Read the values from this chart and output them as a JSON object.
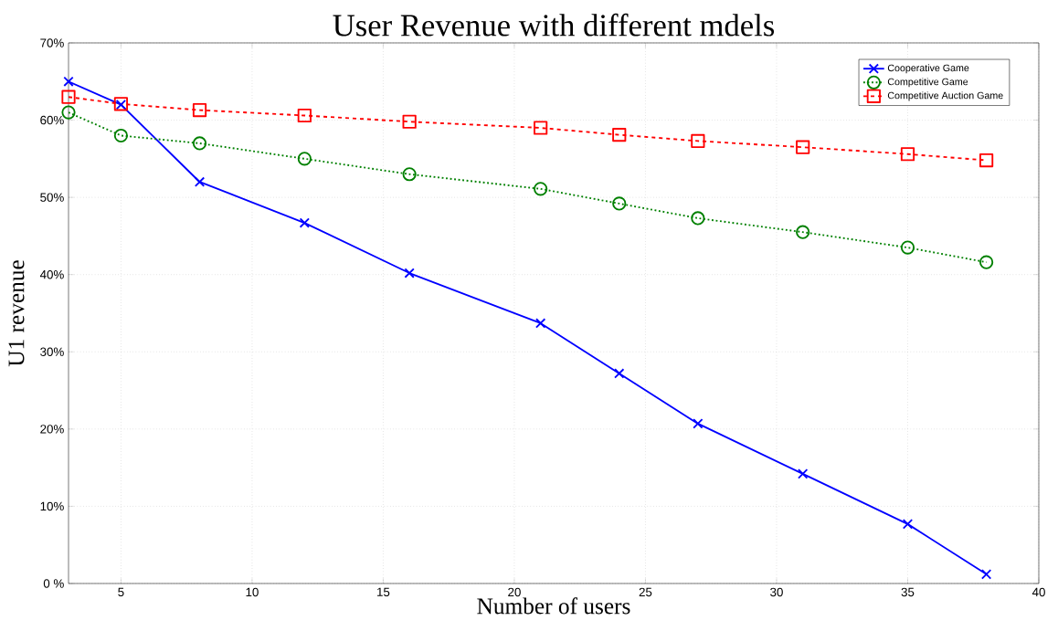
{
  "chart_data": {
    "type": "line",
    "title": "User Revenue with different mdels",
    "xlabel": "Number of users",
    "ylabel": "U1 revenue",
    "x": [
      3,
      5,
      8,
      12,
      16,
      21,
      24,
      27,
      31,
      35,
      38
    ],
    "series": [
      {
        "name": "Cooperative Game",
        "color": "#0000ff",
        "marker": "cross",
        "line_style": "solid",
        "values": [
          65,
          62,
          52,
          46.7,
          40.2,
          33.7,
          27.2,
          20.7,
          14.2,
          7.7,
          1.2
        ]
      },
      {
        "name": "Competitive Game",
        "color": "#008000",
        "marker": "circle",
        "line_style": "dotted",
        "values": [
          61,
          58,
          57,
          55,
          53,
          51.1,
          49.2,
          47.3,
          45.5,
          43.5,
          41.6
        ]
      },
      {
        "name": "Competitive Auction Game",
        "color": "#ff0000",
        "marker": "square",
        "line_style": "dashed",
        "values": [
          63,
          62.1,
          61.3,
          60.6,
          59.8,
          59,
          58.1,
          57.3,
          56.5,
          55.6,
          54.8
        ]
      }
    ],
    "xlim": [
      3,
      40
    ],
    "xticks": [
      5,
      10,
      15,
      20,
      25,
      30,
      35,
      40
    ],
    "ylim": [
      0,
      70
    ],
    "yticks": [
      {
        "value": 0,
        "label": "0 %"
      },
      {
        "value": 10,
        "label": "10%"
      },
      {
        "value": 20,
        "label": "20%"
      },
      {
        "value": 30,
        "label": "30%"
      },
      {
        "value": 40,
        "label": "40%"
      },
      {
        "value": 50,
        "label": "50%"
      },
      {
        "value": 60,
        "label": "60%"
      },
      {
        "value": 70,
        "label": "70%"
      }
    ],
    "grid": true,
    "legend": "top right"
  }
}
